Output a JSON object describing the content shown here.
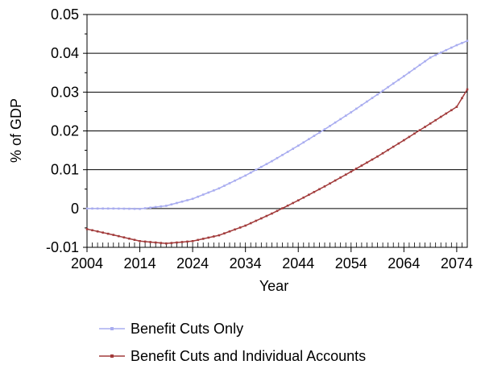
{
  "chart_data": {
    "type": "line",
    "title": "",
    "xlabel": "Year",
    "ylabel": "% of GDP",
    "xlim": [
      2004,
      2076
    ],
    "ylim": [
      -0.01,
      0.05
    ],
    "x_ticks": [
      "2004",
      "2014",
      "2024",
      "2034",
      "2044",
      "2054",
      "2064",
      "2074"
    ],
    "y_ticks": [
      "-0.01",
      "0",
      "0.01",
      "0.02",
      "0.03",
      "0.04",
      "0.05"
    ],
    "grid": "horizontal",
    "legend_position": "bottom",
    "series": [
      {
        "name": "Benefit Cuts Only",
        "color": "#a9adf0",
        "x": [
          2004,
          2009,
          2014,
          2019,
          2024,
          2029,
          2034,
          2039,
          2044,
          2049,
          2054,
          2059,
          2064,
          2069,
          2074,
          2076
        ],
        "values": [
          0.0,
          0.0,
          -0.0001,
          0.0007,
          0.0025,
          0.0052,
          0.0085,
          0.0122,
          0.0162,
          0.0204,
          0.0248,
          0.0294,
          0.0341,
          0.0389,
          0.0421,
          0.0432
        ]
      },
      {
        "name": "Benefit Cuts and Individual Accounts",
        "color": "#a23b3b",
        "x": [
          2004,
          2009,
          2014,
          2019,
          2024,
          2029,
          2034,
          2039,
          2044,
          2049,
          2054,
          2059,
          2064,
          2069,
          2074,
          2076
        ],
        "values": [
          -0.0053,
          -0.0068,
          -0.0084,
          -0.009,
          -0.0084,
          -0.0069,
          -0.0044,
          -0.0013,
          0.0021,
          0.0057,
          0.0095,
          0.0134,
          0.0176,
          0.0219,
          0.0262,
          0.0307
        ]
      }
    ]
  }
}
